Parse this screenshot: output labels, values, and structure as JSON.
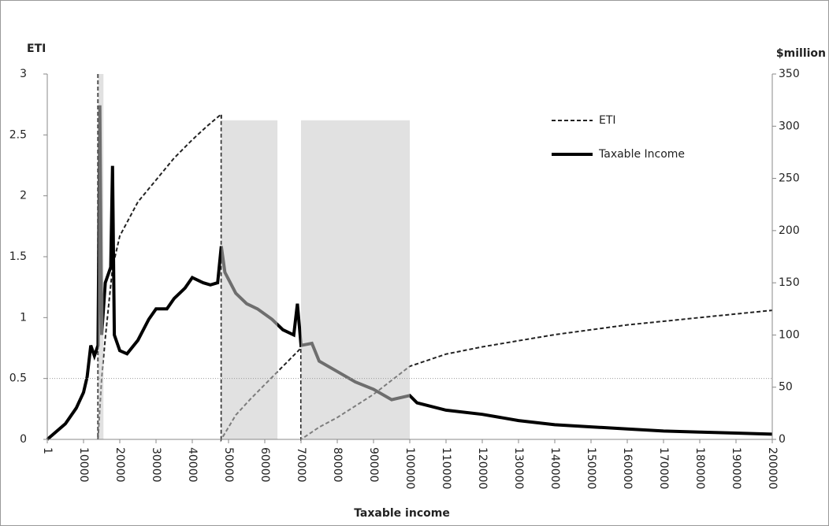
{
  "chart_data": {
    "type": "line",
    "xlabel": "Taxable income",
    "ylabel": "ETI",
    "y2label": "$million",
    "xlim": [
      1,
      200000
    ],
    "xticks": [
      1,
      10000,
      20000,
      30000,
      40000,
      50000,
      60000,
      70000,
      80000,
      90000,
      100000,
      110000,
      120000,
      130000,
      140000,
      150000,
      160000,
      170000,
      180000,
      190000,
      200000
    ],
    "ylim": [
      0,
      3
    ],
    "yticks": [
      0,
      0.5,
      1,
      1.5,
      2,
      2.5,
      3
    ],
    "y2lim": [
      0,
      350
    ],
    "y2ticks": [
      0,
      50,
      100,
      150,
      200,
      250,
      300,
      350
    ],
    "reference_line": 0.5,
    "shaded_regions": [
      {
        "x0": 14000,
        "x1": 15500,
        "y": 3
      },
      {
        "x0": 48000,
        "x1": 63500,
        "y": 2.62
      },
      {
        "x0": 70000,
        "x1": 100000,
        "y": 2.62
      }
    ],
    "series": [
      {
        "name": "ETI",
        "color": "#222222",
        "dash": true,
        "x": [
          14000,
          14000,
          15000,
          16000,
          18000,
          20000,
          25000,
          30000,
          35000,
          40000,
          44000,
          48000,
          48000,
          52000,
          56000,
          60000,
          65000,
          70000,
          70000,
          75000,
          80000,
          90000,
          100000,
          110000,
          120000,
          130000,
          140000,
          150000,
          160000,
          170000,
          180000,
          190000,
          200000
        ],
        "values": [
          3,
          0,
          0.5,
          0.83,
          1.41,
          1.67,
          1.95,
          2.13,
          2.31,
          2.46,
          2.57,
          2.67,
          0,
          0.2,
          0.33,
          0.45,
          0.6,
          0.75,
          0,
          0.1,
          0.18,
          0.37,
          0.6,
          0.7,
          0.76,
          0.81,
          0.86,
          0.9,
          0.94,
          0.97,
          1.0,
          1.03,
          1.06
        ]
      },
      {
        "name": "Taxable Income",
        "color": "#000000",
        "dash": false,
        "axis": "y2",
        "x": [
          1,
          5000,
          8000,
          10000,
          11000,
          12000,
          13000,
          14000,
          14500,
          15000,
          16000,
          17500,
          18000,
          18500,
          20000,
          22000,
          25000,
          28000,
          30000,
          33000,
          35000,
          38000,
          40000,
          43000,
          45000,
          47000,
          48000,
          49000,
          52000,
          55000,
          58000,
          62000,
          65000,
          68000,
          69000,
          70000,
          73000,
          75000,
          80000,
          85000,
          90000,
          95000,
          100000,
          102000,
          110000,
          120000,
          130000,
          140000,
          150000,
          160000,
          170000,
          180000,
          190000,
          200000
        ],
        "values": [
          0,
          15,
          30,
          45,
          60,
          90,
          80,
          90,
          320,
          100,
          150,
          165,
          262,
          100,
          85,
          82,
          95,
          115,
          125,
          125,
          135,
          145,
          155,
          150,
          148,
          150,
          185,
          160,
          140,
          130,
          125,
          115,
          105,
          100,
          130,
          90,
          92,
          75,
          65,
          55,
          48,
          38,
          42,
          35,
          28,
          24,
          18,
          14,
          12,
          10,
          8,
          7,
          6,
          5
        ]
      }
    ]
  }
}
